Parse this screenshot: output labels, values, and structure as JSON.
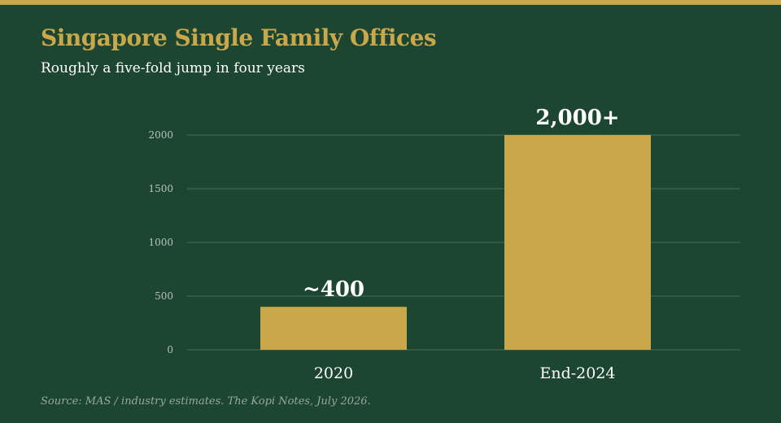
{
  "header": {
    "title": "Singapore Single Family Offices",
    "subtitle": "Roughly a five-fold jump in four years"
  },
  "footer": {
    "source": "Source: MAS / industry estimates. The Kopi Notes, July 2026."
  },
  "colors": {
    "background": "#1c4532",
    "accent": "#c9a84c",
    "bar": "#c9a84c",
    "gridline": "#4a6b5a",
    "tick_label": "#b9c4bd",
    "category_label": "#ffffff",
    "source_text": "#9aa89f"
  },
  "chart_data": {
    "type": "bar",
    "categories": [
      "2020",
      "End-2024"
    ],
    "values": [
      400,
      2000
    ],
    "data_labels": [
      "~400",
      "2,000+"
    ],
    "yticks": [
      0,
      500,
      1000,
      1500,
      2000
    ],
    "ylim": [
      0,
      2000
    ],
    "grid": true,
    "legend": "none"
  }
}
